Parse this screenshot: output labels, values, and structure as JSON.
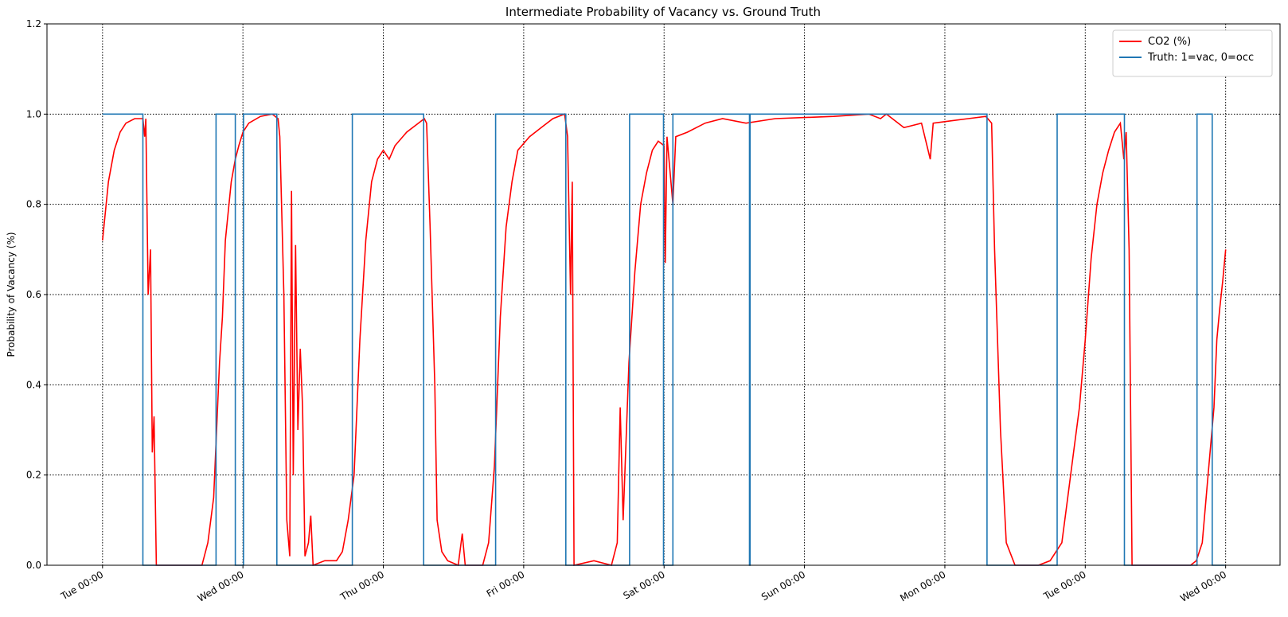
{
  "chart_data": {
    "type": "line",
    "title": "Intermediate Probability of Vacancy vs. Ground Truth",
    "ylabel": "Probability of Vacancy (%)",
    "xlim": [
      -9.5,
      201.3
    ],
    "ylim": [
      0,
      1.2
    ],
    "xticks": [
      {
        "value": 0,
        "label": "Tue 00:00"
      },
      {
        "value": 24,
        "label": "Wed 00:00"
      },
      {
        "value": 48,
        "label": "Thu 00:00"
      },
      {
        "value": 72,
        "label": "Fri 00:00"
      },
      {
        "value": 96,
        "label": "Sat 00:00"
      },
      {
        "value": 120,
        "label": "Sun 00:00"
      },
      {
        "value": 144,
        "label": "Mon 00:00"
      },
      {
        "value": 168,
        "label": "Tue 00:00"
      },
      {
        "value": 192,
        "label": "Wed 00:00"
      }
    ],
    "yticks": [
      {
        "value": 0,
        "label": "0.0"
      },
      {
        "value": 0.2,
        "label": "0.2"
      },
      {
        "value": 0.4,
        "label": "0.4"
      },
      {
        "value": 0.6,
        "label": "0.6"
      },
      {
        "value": 0.8,
        "label": "0.8"
      },
      {
        "value": 1,
        "label": "1.0"
      },
      {
        "value": 1.2,
        "label": "1.2"
      }
    ],
    "grid": true,
    "legend": "upper right",
    "series": [
      {
        "name": "CO2 (%)",
        "color": "#ff0000",
        "x": [
          0,
          1,
          2,
          3,
          4,
          5.5,
          6.9,
          7.2,
          7.4,
          7.8,
          8.2,
          8.5,
          8.8,
          9.2,
          10,
          17,
          18,
          19,
          20,
          20.5,
          21,
          22,
          22.7,
          23.3,
          24,
          25,
          27,
          29,
          30,
          30.3,
          31,
          31.5,
          32,
          32.3,
          32.6,
          33,
          33.4,
          33.8,
          34.2,
          34.6,
          35.2,
          35.6,
          36,
          38,
          40,
          41,
          42,
          43,
          44,
          45,
          46,
          47,
          48,
          49,
          50,
          52,
          54,
          55,
          55.4,
          56,
          56.8,
          57.2,
          58,
          59,
          60.8,
          61.5,
          62,
          65,
          66,
          67,
          68,
          69,
          70,
          71,
          73,
          75,
          77,
          79,
          79.5,
          80,
          80.3,
          80.6,
          84,
          87,
          88,
          88.5,
          89,
          90,
          91,
          92,
          93,
          94,
          95,
          96,
          96.2,
          96.5,
          97.5,
          98,
          100,
          103,
          106,
          110,
          115,
          125,
          131,
          133,
          134,
          137,
          140,
          141.5,
          142,
          145,
          148,
          151,
          152,
          152.5,
          153.5,
          154.5,
          156,
          160,
          162,
          164,
          165,
          166,
          167,
          168,
          169,
          170,
          171,
          172,
          173,
          174,
          174.6,
          175,
          175.5,
          176,
          180,
          186,
          187,
          188,
          189,
          190,
          190.5,
          191,
          191.5,
          192
        ],
        "values": [
          0.72,
          0.85,
          0.92,
          0.96,
          0.98,
          0.99,
          0.99,
          0.95,
          0.99,
          0.6,
          0.7,
          0.25,
          0.33,
          0,
          0,
          0,
          0.05,
          0.15,
          0.45,
          0.55,
          0.72,
          0.85,
          0.9,
          0.93,
          0.96,
          0.98,
          0.995,
          1,
          0.99,
          0.95,
          0.6,
          0.1,
          0.02,
          0.83,
          0.2,
          0.71,
          0.3,
          0.48,
          0.35,
          0.02,
          0.05,
          0.11,
          0,
          0.01,
          0.01,
          0.03,
          0.1,
          0.2,
          0.5,
          0.72,
          0.85,
          0.9,
          0.92,
          0.9,
          0.93,
          0.96,
          0.98,
          0.99,
          0.98,
          0.75,
          0.4,
          0.1,
          0.03,
          0.01,
          0,
          0.07,
          0,
          0,
          0.05,
          0.22,
          0.55,
          0.75,
          0.85,
          0.92,
          0.95,
          0.97,
          0.99,
          1,
          0.95,
          0.6,
          0.85,
          0,
          0.01,
          0,
          0.05,
          0.35,
          0.1,
          0.45,
          0.65,
          0.8,
          0.87,
          0.92,
          0.94,
          0.93,
          0.67,
          0.95,
          0.8,
          0.95,
          0.96,
          0.98,
          0.99,
          0.98,
          0.99,
          0.995,
          1,
          0.99,
          1,
          0.97,
          0.98,
          0.9,
          0.98,
          0.985,
          0.99,
          0.995,
          0.98,
          0.7,
          0.3,
          0.05,
          0,
          0,
          0.01,
          0.05,
          0.15,
          0.25,
          0.35,
          0.5,
          0.68,
          0.8,
          0.87,
          0.92,
          0.96,
          0.98,
          0.9,
          0.96,
          0.7,
          0,
          0,
          0,
          0.01,
          0.05,
          0.2,
          0.35,
          0.5,
          0.57,
          0.63,
          0.7
        ]
      },
      {
        "name": "Truth: 1=vac, 0=occ",
        "color": "#1f77b4",
        "x": [
          0,
          6.9,
          6.9,
          19.4,
          19.4,
          22.7,
          22.7,
          24.1,
          24.1,
          29.8,
          29.8,
          42.7,
          42.7,
          54.9,
          54.9,
          67.2,
          67.2,
          79.2,
          79.2,
          90.1,
          90.1,
          95.9,
          95.9,
          97.5,
          97.5,
          110.6,
          110.6,
          110.7,
          110.7,
          151.2,
          151.2,
          163.2,
          163.2,
          174.7,
          174.7,
          187.1,
          187.1,
          189.7,
          189.7,
          191.9
        ],
        "values": [
          1,
          1,
          0,
          0,
          1,
          1,
          0,
          0,
          1,
          1,
          0,
          0,
          1,
          1,
          0,
          0,
          1,
          1,
          0,
          0,
          1,
          1,
          0,
          0,
          1,
          1,
          0,
          0,
          1,
          1,
          0,
          0,
          1,
          1,
          0,
          0,
          1,
          1,
          0,
          0
        ]
      }
    ]
  }
}
